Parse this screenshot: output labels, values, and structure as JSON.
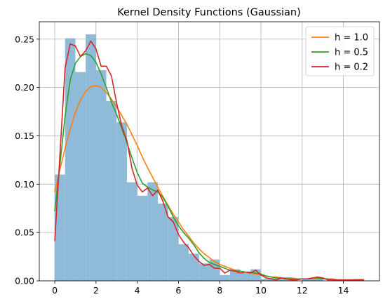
{
  "chart_data": {
    "type": "histogram+line",
    "title": "Kernel Density Functions (Gaussian)",
    "xlabel": "",
    "ylabel": "",
    "xlim": [
      -0.75,
      15.75
    ],
    "ylim": [
      0,
      0.268
    ],
    "x_ticks": [
      0,
      2,
      4,
      6,
      8,
      10,
      12,
      14
    ],
    "y_ticks": [
      0.0,
      0.05,
      0.1,
      0.15,
      0.2,
      0.25
    ],
    "y_tick_labels": [
      "0.00",
      "0.05",
      "0.10",
      "0.15",
      "0.20",
      "0.25"
    ],
    "grid": true,
    "legend_position": "top-right",
    "histogram": {
      "color": "#8fbbd9",
      "bin_edges": [
        0.0,
        0.5,
        1.0,
        1.5,
        2.0,
        2.5,
        3.0,
        3.5,
        4.0,
        4.5,
        5.0,
        5.5,
        6.0,
        6.5,
        7.0,
        7.5,
        8.0,
        8.5,
        9.0,
        9.5,
        10.0,
        10.5,
        11.0,
        11.5,
        12.0,
        12.5,
        13.0,
        13.5,
        14.0,
        14.5,
        15.0
      ],
      "values": [
        0.11,
        0.251,
        0.216,
        0.255,
        0.218,
        0.186,
        0.164,
        0.102,
        0.088,
        0.102,
        0.08,
        0.066,
        0.038,
        0.028,
        0.018,
        0.022,
        0.006,
        0.012,
        0.008,
        0.012,
        0.002,
        0.004,
        0.002,
        0.0,
        0.002,
        0.002,
        0.0,
        0.0,
        0.0,
        0.002
      ]
    },
    "x": [
      0.0,
      0.25,
      0.5,
      0.75,
      1.0,
      1.25,
      1.5,
      1.75,
      2.0,
      2.25,
      2.5,
      2.75,
      3.0,
      3.25,
      3.5,
      3.75,
      4.0,
      4.25,
      4.5,
      4.75,
      5.0,
      5.25,
      5.5,
      5.75,
      6.0,
      6.25,
      6.5,
      6.75,
      7.0,
      7.25,
      7.5,
      7.75,
      8.0,
      8.25,
      8.5,
      8.75,
      9.0,
      9.25,
      9.5,
      9.75,
      10.0,
      10.25,
      10.5,
      10.75,
      11.0,
      11.25,
      11.5,
      11.75,
      12.0,
      12.25,
      12.5,
      12.75,
      13.0,
      13.25,
      13.5,
      13.75,
      14.0,
      14.25,
      14.5,
      14.75,
      15.0
    ],
    "series": [
      {
        "name": "h = 1.0",
        "color": "#ff7f0e",
        "values": [
          0.092,
          0.115,
          0.137,
          0.157,
          0.174,
          0.187,
          0.196,
          0.201,
          0.202,
          0.2,
          0.195,
          0.188,
          0.18,
          0.171,
          0.162,
          0.151,
          0.14,
          0.128,
          0.117,
          0.107,
          0.097,
          0.087,
          0.078,
          0.069,
          0.061,
          0.053,
          0.046,
          0.039,
          0.033,
          0.028,
          0.024,
          0.02,
          0.017,
          0.015,
          0.013,
          0.011,
          0.01,
          0.009,
          0.008,
          0.007,
          0.006,
          0.005,
          0.004,
          0.004,
          0.003,
          0.003,
          0.003,
          0.002,
          0.002,
          0.002,
          0.002,
          0.002,
          0.002,
          0.002,
          0.002,
          0.001,
          0.001,
          0.001,
          0.001,
          0.001,
          0.001
        ]
      },
      {
        "name": "h = 0.5",
        "color": "#2ca02c",
        "values": [
          0.072,
          0.12,
          0.17,
          0.208,
          0.225,
          0.232,
          0.235,
          0.233,
          0.226,
          0.214,
          0.2,
          0.185,
          0.172,
          0.158,
          0.143,
          0.127,
          0.112,
          0.101,
          0.097,
          0.094,
          0.092,
          0.086,
          0.077,
          0.066,
          0.057,
          0.05,
          0.044,
          0.037,
          0.029,
          0.023,
          0.019,
          0.017,
          0.015,
          0.013,
          0.011,
          0.01,
          0.01,
          0.009,
          0.009,
          0.008,
          0.007,
          0.005,
          0.004,
          0.003,
          0.003,
          0.002,
          0.002,
          0.002,
          0.002,
          0.002,
          0.003,
          0.003,
          0.002,
          0.002,
          0.001,
          0.001,
          0.001,
          0.001,
          0.001,
          0.001,
          0.001
        ]
      },
      {
        "name": "h = 0.2",
        "color": "#d62728",
        "values": [
          0.041,
          0.13,
          0.22,
          0.245,
          0.243,
          0.232,
          0.238,
          0.248,
          0.24,
          0.222,
          0.222,
          0.212,
          0.184,
          0.16,
          0.145,
          0.116,
          0.099,
          0.092,
          0.096,
          0.088,
          0.094,
          0.082,
          0.066,
          0.061,
          0.048,
          0.04,
          0.034,
          0.026,
          0.02,
          0.016,
          0.017,
          0.013,
          0.013,
          0.008,
          0.011,
          0.01,
          0.008,
          0.009,
          0.008,
          0.011,
          0.006,
          0.003,
          0.002,
          0.001,
          0.003,
          0.002,
          0.001,
          0.001,
          0.002,
          0.002,
          0.003,
          0.004,
          0.003,
          0.001,
          0.001,
          0.001,
          0.001,
          0.001,
          0.001,
          0.001,
          0.001
        ]
      }
    ]
  }
}
